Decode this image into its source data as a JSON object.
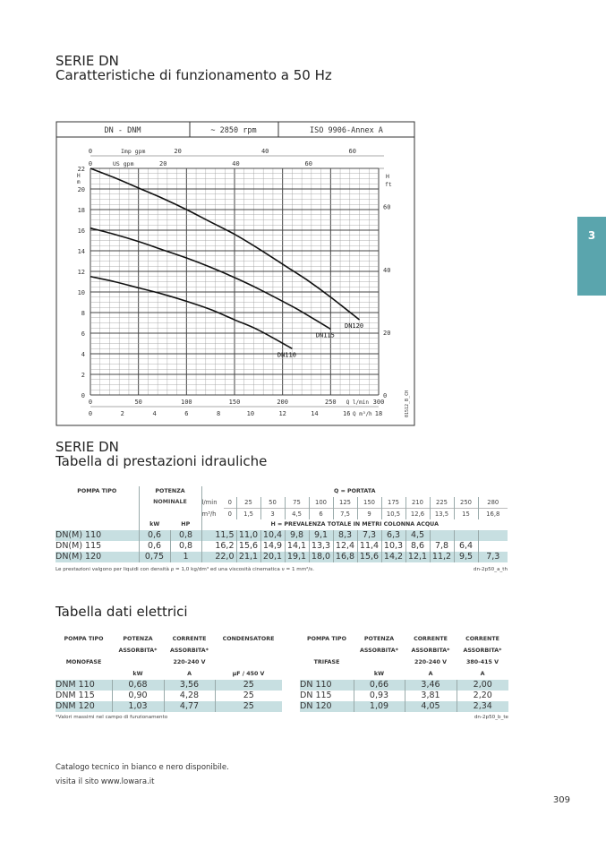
{
  "section_tab": "3",
  "header": {
    "title": "SERIE DN",
    "subtitle": "Caratteristiche di funzionamento a 50 Hz"
  },
  "chart_data": {
    "type": "line",
    "header_cells": [
      "DN - DNM",
      "~ 2850 rpm",
      "ISO 9906-Annex A"
    ],
    "xlabel": "Q l/min",
    "xlim": [
      0,
      300
    ],
    "xticks": [
      0,
      50,
      100,
      150,
      200,
      250,
      300
    ],
    "x2_label": "Q m³/h",
    "x2_ticks": [
      0,
      2,
      4,
      6,
      8,
      10,
      12,
      14,
      16,
      18
    ],
    "top_axis1_label": "Imp gpm",
    "top_axis1_ticks": [
      0,
      20,
      40,
      60
    ],
    "top_axis2_label": "US gpm",
    "top_axis2_ticks": [
      0,
      20,
      40,
      60
    ],
    "ylabel": "H m",
    "ylim": [
      0,
      22
    ],
    "yticks": [
      0,
      2,
      4,
      6,
      8,
      10,
      12,
      14,
      16,
      18,
      20,
      22
    ],
    "y2_label": "H ft",
    "y2_ticks": [
      0,
      20,
      40,
      60
    ],
    "q_unit_label": "l/min",
    "q2_unit_label": "m³/h",
    "grid": true,
    "code": "01512_B_CH",
    "series": [
      {
        "name": "DN110",
        "x": [
          0,
          25,
          50,
          75,
          100,
          125,
          150,
          175,
          210
        ],
        "y": [
          11.5,
          11.0,
          10.4,
          9.8,
          9.1,
          8.3,
          7.3,
          6.3,
          4.5
        ]
      },
      {
        "name": "DN115",
        "x": [
          0,
          25,
          50,
          75,
          100,
          125,
          150,
          175,
          210,
          225,
          250
        ],
        "y": [
          16.2,
          15.6,
          14.9,
          14.1,
          13.3,
          12.4,
          11.4,
          10.3,
          8.6,
          7.8,
          6.4
        ]
      },
      {
        "name": "DN120",
        "x": [
          0,
          25,
          50,
          75,
          100,
          125,
          150,
          175,
          210,
          225,
          250,
          280
        ],
        "y": [
          22.0,
          21.1,
          20.1,
          19.1,
          18.0,
          16.8,
          15.6,
          14.2,
          12.1,
          11.2,
          9.5,
          7.3
        ]
      }
    ]
  },
  "perf": {
    "title": "SERIE DN",
    "subtitle": "Tabella di prestazioni idrauliche",
    "h_pompa": "POMPA TIPO",
    "h_potenza": "POTENZA",
    "h_nominale": "NOMINALE",
    "h_q": "Q = PORTATA",
    "u_lmin": "l/min",
    "u_m3h": "m³/h",
    "h_kw": "kW",
    "h_hp": "HP",
    "h_h": "H = PREVALENZA TOTALE IN METRI COLONNA ACQUA",
    "lmin": [
      "0",
      "25",
      "50",
      "75",
      "100",
      "125",
      "150",
      "175",
      "210",
      "225",
      "250",
      "280"
    ],
    "m3h": [
      "0",
      "1,5",
      "3",
      "4,5",
      "6",
      "7,5",
      "9",
      "10,5",
      "12,6",
      "13,5",
      "15",
      "16,8"
    ],
    "rows": [
      {
        "name": "DN(M) 110",
        "kw": "0,6",
        "hp": "0,8",
        "h": [
          "11,5",
          "11,0",
          "10,4",
          "9,8",
          "9,1",
          "8,3",
          "7,3",
          "6,3",
          "4,5",
          "",
          "",
          ""
        ]
      },
      {
        "name": "DN(M) 115",
        "kw": "0,6",
        "hp": "0,8",
        "h": [
          "16,2",
          "15,6",
          "14,9",
          "14,1",
          "13,3",
          "12,4",
          "11,4",
          "10,3",
          "8,6",
          "7,8",
          "6,4",
          ""
        ]
      },
      {
        "name": "DN(M) 120",
        "kw": "0,75",
        "hp": "1",
        "h": [
          "22,0",
          "21,1",
          "20,1",
          "19,1",
          "18,0",
          "16,8",
          "15,6",
          "14,2",
          "12,1",
          "11,2",
          "9,5",
          "7,3"
        ]
      }
    ],
    "note": "Le prestazioni valgono per liquidi con densità ρ = 1,0 kg/dm³ ed una viscosità cinematica ν = 1 mm²/s.",
    "code": "dn-2p50_a_th"
  },
  "elec": {
    "title": "Tabella dati elettrici",
    "mono": {
      "headers": [
        [
          "POMPA TIPO",
          "POTENZA",
          "CORRENTE",
          "CONDENSATORE"
        ],
        [
          "",
          "ASSORBITA*",
          "ASSORBITA*",
          ""
        ],
        [
          "MONOFASE",
          "",
          "220-240 V",
          ""
        ],
        [
          "",
          "kW",
          "A",
          "µF / 450 V"
        ]
      ],
      "rows": [
        [
          "DNM 110",
          "0,68",
          "3,56",
          "25"
        ],
        [
          "DNM 115",
          "0,90",
          "4,28",
          "25"
        ],
        [
          "DNM 120",
          "1,03",
          "4,77",
          "25"
        ]
      ]
    },
    "tri": {
      "headers": [
        [
          "POMPA TIPO",
          "POTENZA",
          "CORRENTE",
          "CORRENTE"
        ],
        [
          "",
          "ASSORBITA*",
          "ASSORBITA*",
          "ASSORBITA*"
        ],
        [
          "TRIFASE",
          "",
          "220-240 V",
          "380-415 V"
        ],
        [
          "",
          "kW",
          "A",
          "A"
        ]
      ],
      "rows": [
        [
          "DN 110",
          "0,66",
          "3,46",
          "2,00"
        ],
        [
          "DN 115",
          "0,93",
          "3,81",
          "2,20"
        ],
        [
          "DN 120",
          "1,09",
          "4,05",
          "2,34"
        ]
      ]
    },
    "note": "*Valori massimi nel campo di funzionamento",
    "code": "dn-2p50_b_te"
  },
  "footer": {
    "line1": "Catalogo tecnico in bianco e nero disponibile.",
    "line2": "visita il sito www.lowara.it",
    "page": "309"
  }
}
